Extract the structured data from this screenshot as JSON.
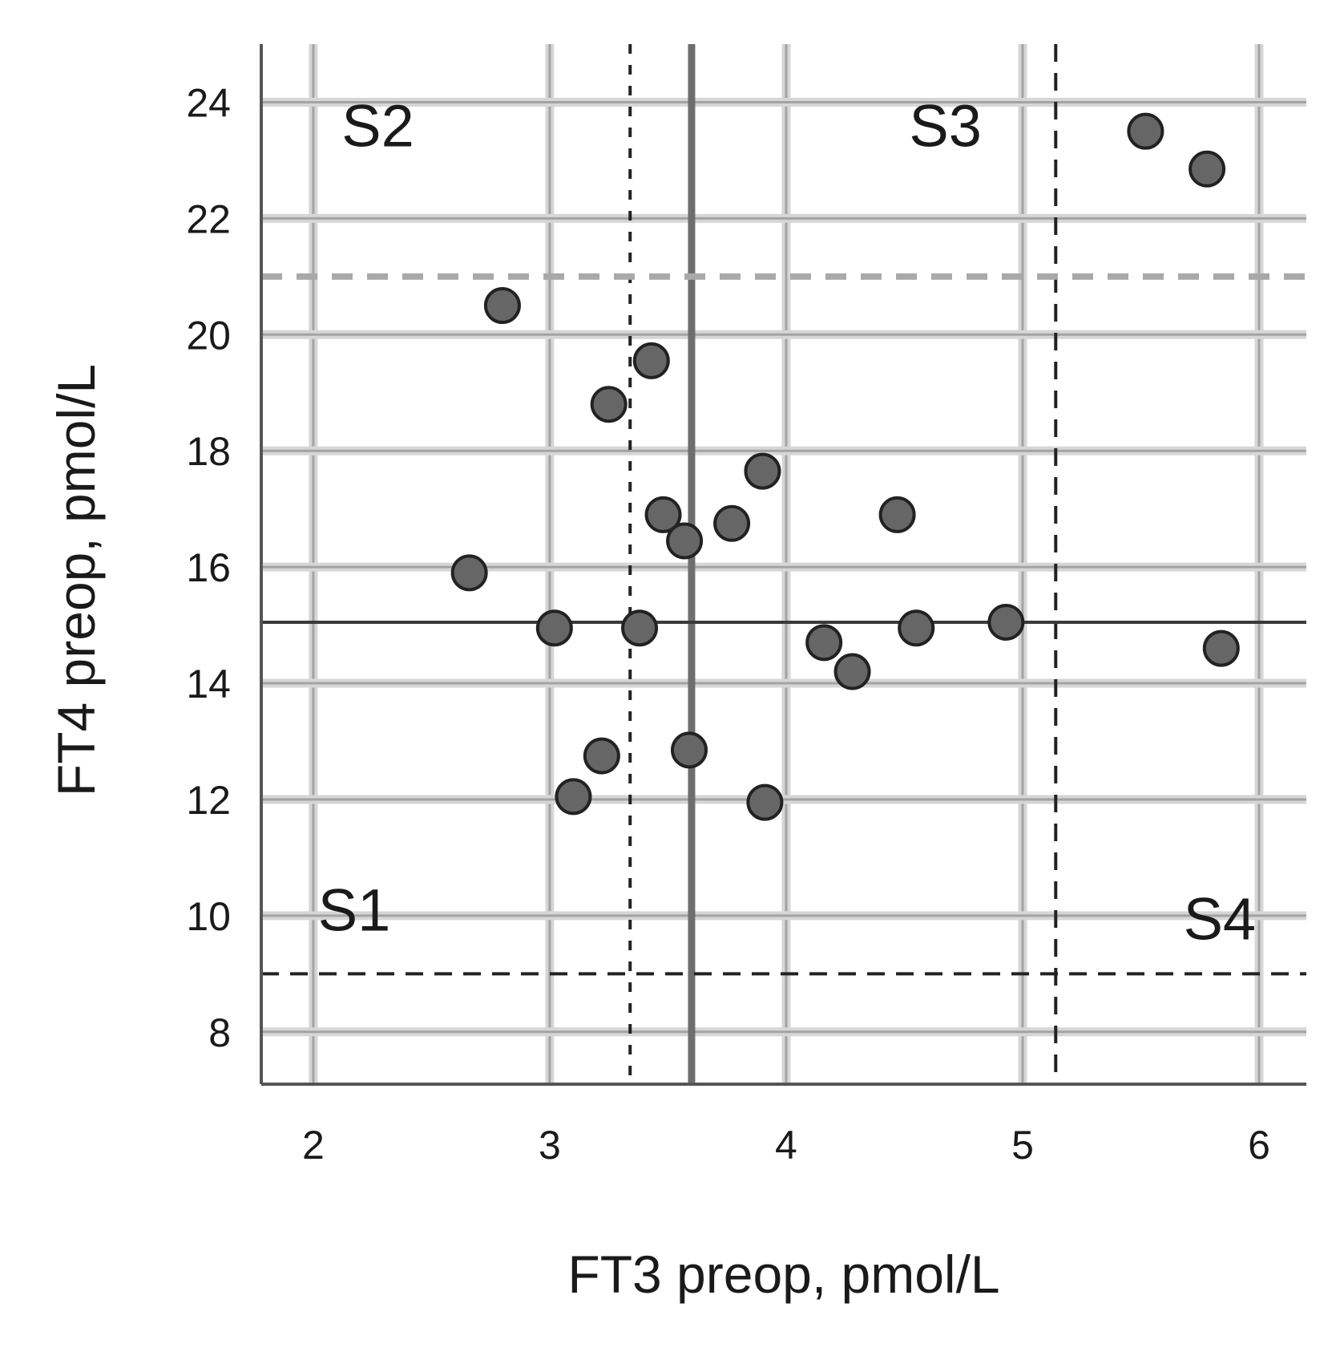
{
  "chart_data": {
    "type": "scatter",
    "xlabel": "FT3 preop, pmol/L",
    "ylabel": "FT4 preop, pmol/L",
    "xlim": [
      1.78,
      6.2
    ],
    "ylim": [
      7.1,
      25.0
    ],
    "x_ticks": [
      2,
      3,
      4,
      5,
      6
    ],
    "y_ticks": [
      8,
      10,
      12,
      14,
      16,
      18,
      20,
      22,
      24
    ],
    "x_tick_labels": [
      "2",
      "3",
      "4",
      "5",
      "6"
    ],
    "y_tick_labels": [
      "8",
      "10",
      "12",
      "14",
      "16",
      "18",
      "20",
      "22",
      "24"
    ],
    "grid": true,
    "point_color": "#666666",
    "points": [
      {
        "x": 5.52,
        "y": 23.5
      },
      {
        "x": 5.78,
        "y": 22.85
      },
      {
        "x": 2.8,
        "y": 20.5
      },
      {
        "x": 3.43,
        "y": 19.55
      },
      {
        "x": 3.25,
        "y": 18.8
      },
      {
        "x": 3.9,
        "y": 17.65
      },
      {
        "x": 3.48,
        "y": 16.9
      },
      {
        "x": 3.77,
        "y": 16.75
      },
      {
        "x": 3.57,
        "y": 16.45
      },
      {
        "x": 4.47,
        "y": 16.9
      },
      {
        "x": 2.66,
        "y": 15.9
      },
      {
        "x": 3.02,
        "y": 14.95
      },
      {
        "x": 3.38,
        "y": 14.95
      },
      {
        "x": 4.55,
        "y": 14.95
      },
      {
        "x": 4.93,
        "y": 15.05
      },
      {
        "x": 4.16,
        "y": 14.7
      },
      {
        "x": 4.28,
        "y": 14.2
      },
      {
        "x": 5.84,
        "y": 14.6
      },
      {
        "x": 3.59,
        "y": 12.85
      },
      {
        "x": 3.22,
        "y": 12.75
      },
      {
        "x": 3.1,
        "y": 12.05
      },
      {
        "x": 3.91,
        "y": 11.95
      }
    ],
    "reference_lines": [
      {
        "axis": "x",
        "value": 3.34,
        "style": "dotted",
        "color": "#222222"
      },
      {
        "axis": "x",
        "value": 3.6,
        "style": "solid-thick",
        "color": "#6e6e6e"
      },
      {
        "axis": "x",
        "value": 5.14,
        "style": "dashed",
        "color": "#222222"
      },
      {
        "axis": "y",
        "value": 21.0,
        "style": "dashed-thick",
        "color": "#a9a9a9"
      },
      {
        "axis": "y",
        "value": 15.05,
        "style": "solid",
        "color": "#3a3a3a"
      },
      {
        "axis": "y",
        "value": 9.0,
        "style": "dashed",
        "color": "#222222"
      }
    ],
    "annotations": [
      {
        "text": "S2",
        "x": 2.12,
        "y": 23.6
      },
      {
        "text": "S3",
        "x": 4.52,
        "y": 23.6
      },
      {
        "text": "S1",
        "x": 2.02,
        "y": 10.1
      },
      {
        "text": "S4",
        "x": 5.68,
        "y": 9.95
      }
    ]
  }
}
